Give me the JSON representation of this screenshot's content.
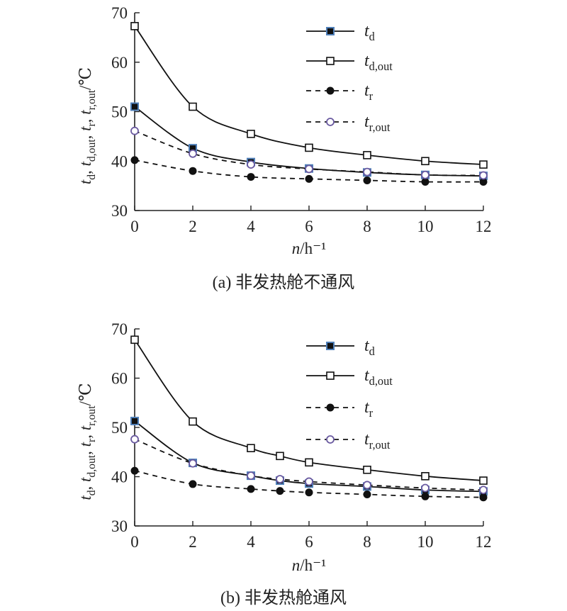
{
  "chart_data": [
    {
      "type": "line",
      "title": "",
      "caption": "(a) 非发热舱不通风",
      "xlabel": "n/h⁻¹",
      "ylabel": "t_d, t_d,out, t_r, t_r,out/℃",
      "xlim": [
        0,
        12
      ],
      "ylim": [
        30,
        70
      ],
      "xticks": [
        0,
        2,
        4,
        6,
        8,
        10,
        12
      ],
      "yticks": [
        30,
        40,
        50,
        60,
        70
      ],
      "grid": false,
      "legend_position": "top-right",
      "series": [
        {
          "name": "t_d",
          "marker": "filled-square",
          "line": "solid",
          "x": [
            0,
            2,
            4,
            6,
            8,
            10,
            12
          ],
          "y": [
            51.0,
            42.6,
            39.8,
            38.5,
            37.7,
            37.2,
            37.0
          ]
        },
        {
          "name": "t_d,out",
          "marker": "open-square",
          "line": "solid",
          "x": [
            0,
            2,
            4,
            6,
            8,
            10,
            12
          ],
          "y": [
            67.3,
            51.0,
            45.5,
            42.7,
            41.2,
            40.0,
            39.3
          ]
        },
        {
          "name": "t_r",
          "marker": "filled-circle",
          "line": "dashed",
          "x": [
            0,
            2,
            4,
            6,
            8,
            10,
            12
          ],
          "y": [
            40.2,
            38.0,
            36.8,
            36.4,
            36.1,
            35.8,
            35.8
          ]
        },
        {
          "name": "t_r,out",
          "marker": "open-circle",
          "line": "dashed",
          "x": [
            0,
            2,
            4,
            6,
            8,
            10,
            12
          ],
          "y": [
            46.1,
            41.5,
            39.3,
            38.4,
            37.8,
            37.2,
            37.1
          ]
        }
      ]
    },
    {
      "type": "line",
      "title": "",
      "caption": "(b) 非发热舱通风",
      "xlabel": "n/h⁻¹",
      "ylabel": "t_d, t_d,out, t_r, t_r,out/℃",
      "xlim": [
        0,
        12
      ],
      "ylim": [
        30,
        70
      ],
      "xticks": [
        0,
        2,
        4,
        6,
        8,
        10,
        12
      ],
      "yticks": [
        30,
        40,
        50,
        60,
        70
      ],
      "grid": false,
      "legend_position": "top-right",
      "series": [
        {
          "name": "t_d",
          "marker": "filled-square",
          "line": "solid",
          "x": [
            0,
            2,
            4,
            5,
            6,
            8,
            10,
            12
          ],
          "y": [
            51.3,
            42.8,
            40.2,
            39.2,
            38.6,
            38.0,
            37.3,
            37.0
          ]
        },
        {
          "name": "t_d,out",
          "marker": "open-square",
          "line": "solid",
          "x": [
            0,
            2,
            4,
            5,
            6,
            8,
            10,
            12
          ],
          "y": [
            67.8,
            51.2,
            45.8,
            44.2,
            42.9,
            41.4,
            40.1,
            39.2
          ]
        },
        {
          "name": "t_r",
          "marker": "filled-circle",
          "line": "dashed",
          "x": [
            0,
            2,
            4,
            5,
            6,
            8,
            10,
            12
          ],
          "y": [
            41.2,
            38.5,
            37.5,
            37.1,
            36.8,
            36.4,
            36.0,
            35.8
          ]
        },
        {
          "name": "t_r,out",
          "marker": "open-circle",
          "line": "dashed",
          "x": [
            0,
            2,
            4,
            5,
            6,
            8,
            10,
            12
          ],
          "y": [
            47.6,
            42.7,
            40.2,
            39.5,
            39.0,
            38.3,
            37.7,
            37.3
          ]
        }
      ]
    }
  ],
  "colors": {
    "axis": "#222222",
    "line": "#111111",
    "filled_marker": "#111111",
    "marker_edge_blue": "#4f7fb8",
    "marker_edge_purple": "#6a5aa0"
  }
}
